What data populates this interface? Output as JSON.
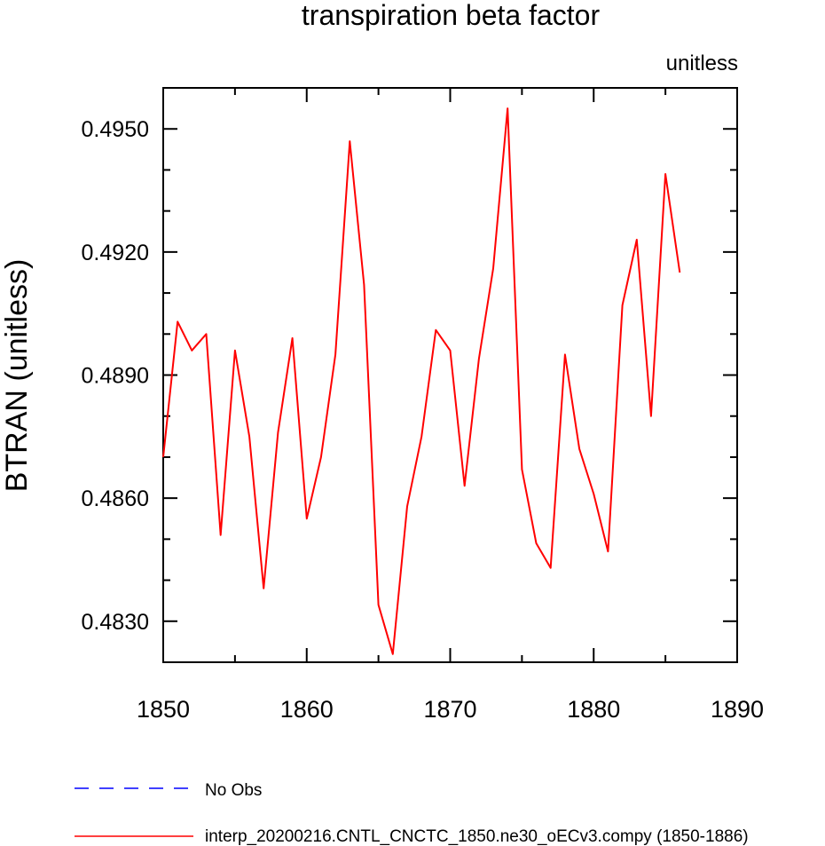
{
  "chart_data": {
    "type": "line",
    "title": "transpiration beta factor",
    "units_label": "unitless",
    "ylabel": "BTRAN  (unitless)",
    "xlabel": "",
    "xlim": [
      1850,
      1890
    ],
    "ylim": [
      0.482,
      0.496
    ],
    "x_ticks": [
      1850,
      1860,
      1870,
      1880,
      1890
    ],
    "x_tick_labels": [
      "1850",
      "1860",
      "1870",
      "1880",
      "1890"
    ],
    "y_ticks": [
      0.483,
      0.486,
      0.489,
      0.492,
      0.495
    ],
    "y_tick_labels": [
      "0.4830",
      "0.4860",
      "0.4890",
      "0.4920",
      "0.4950"
    ],
    "grid": false,
    "legend_position": "bottom",
    "series": [
      {
        "name": "interp_20200216.CNTL_CNCTC_1850.ne30_oECv3.compy (1850-1886)",
        "color": "#ff0000",
        "style": "solid",
        "x": [
          1850,
          1851,
          1852,
          1853,
          1854,
          1855,
          1856,
          1857,
          1858,
          1859,
          1860,
          1861,
          1862,
          1863,
          1864,
          1865,
          1866,
          1867,
          1868,
          1869,
          1870,
          1871,
          1872,
          1873,
          1874,
          1875,
          1876,
          1877,
          1878,
          1879,
          1880,
          1881,
          1882,
          1883,
          1884,
          1885,
          1886
        ],
        "values": [
          0.487,
          0.4903,
          0.4896,
          0.49,
          0.4851,
          0.4896,
          0.4875,
          0.4838,
          0.4876,
          0.4899,
          0.4855,
          0.487,
          0.4895,
          0.4947,
          0.4912,
          0.4834,
          0.4822,
          0.4858,
          0.4875,
          0.4901,
          0.4896,
          0.4863,
          0.4894,
          0.4916,
          0.4955,
          0.4867,
          0.4849,
          0.4843,
          0.4895,
          0.4872,
          0.4861,
          0.4847,
          0.4907,
          0.4923,
          0.488,
          0.4939,
          0.4915
        ]
      },
      {
        "name": "No Obs",
        "color": "#0000ff",
        "style": "dashed",
        "x": [],
        "values": []
      }
    ]
  }
}
